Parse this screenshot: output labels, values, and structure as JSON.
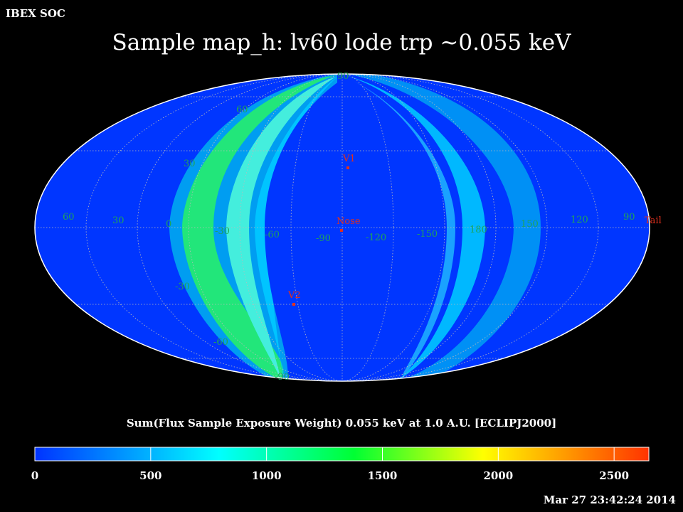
{
  "header": {
    "org_label": "IBEX SOC",
    "title": "Sample map_h: lv60 lode trp ~0.055 keV"
  },
  "map": {
    "projection": "mollweide",
    "frame": "ECLIPJ2000",
    "background_color": "#0033ff",
    "graticule_color": "#bbbbbb",
    "label_color": "#1fa35a",
    "marker_color": "#e0301e",
    "longitude_labels": [
      "60",
      "30",
      "0",
      "-30",
      "-60",
      "-90",
      "-120",
      "-150",
      "180",
      "150",
      "120",
      "90"
    ],
    "latitude_labels": [
      "90",
      "60",
      "30",
      "-30",
      "-60",
      "-90"
    ],
    "markers": [
      {
        "name": "V1"
      },
      {
        "name": "Nose"
      },
      {
        "name": "V2"
      },
      {
        "name": "Tail"
      }
    ]
  },
  "colorbar": {
    "title": "Sum(Flux Sample Exposure Weight)  0.055 keV at 1.0 A.U. [ECLIPJ2000]",
    "ticks": [
      "0",
      "500",
      "1000",
      "1500",
      "2000",
      "2500"
    ],
    "range": [
      0,
      2650
    ],
    "colors": [
      "#0033ff",
      "#00ffff",
      "#00ff33",
      "#ffff00",
      "#ff3300"
    ]
  },
  "footer": {
    "timestamp": "Mar 27 23:42:24 2014"
  }
}
